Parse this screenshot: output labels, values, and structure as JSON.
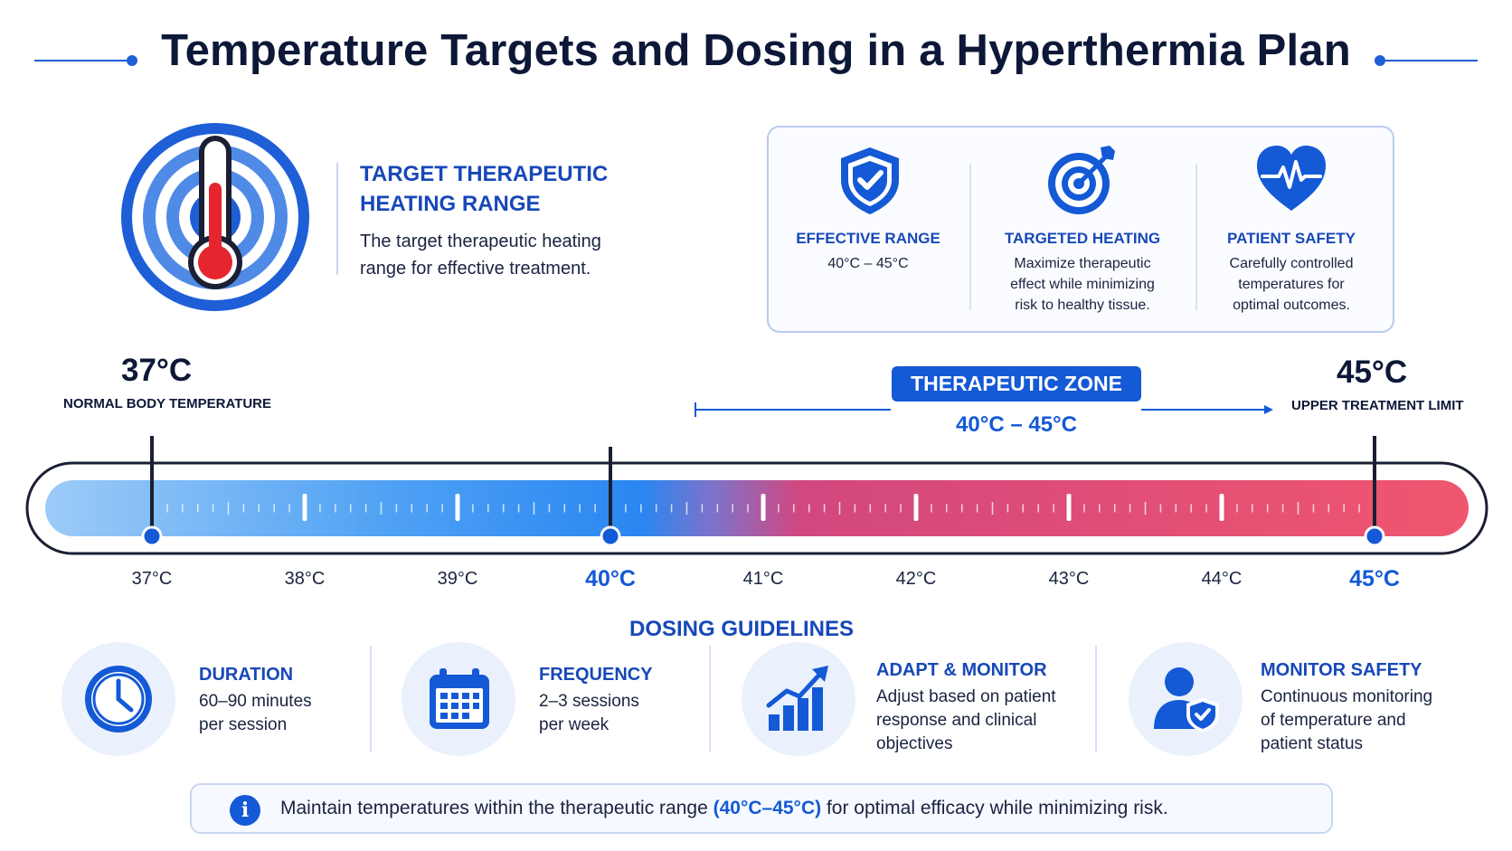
{
  "title": "Temperature Targets and Dosing in a Hyperthermia Plan",
  "target_range": {
    "heading_line1": "TARGET THERAPEUTIC",
    "heading_line2": "HEATING RANGE",
    "text_line1": "The target therapeutic heating",
    "text_line2": "range for effective treatment."
  },
  "features": [
    {
      "icon": "shield-check-icon",
      "title": "EFFECTIVE RANGE",
      "lines": [
        "40°C – 45°C"
      ]
    },
    {
      "icon": "target-arrow-icon",
      "title": "TARGETED HEATING",
      "lines": [
        "Maximize therapeutic",
        "effect while minimizing",
        "risk to healthy tissue."
      ]
    },
    {
      "icon": "heart-pulse-icon",
      "title": "PATIENT SAFETY",
      "lines": [
        "Carefully controlled",
        "temperatures for",
        "optimal outcomes."
      ]
    }
  ],
  "scale": {
    "low_value": "37°C",
    "low_caption": "NORMAL BODY TEMPERATURE",
    "high_value": "45°C",
    "high_caption": "UPPER TREATMENT LIMIT",
    "zone_label": "THERAPEUTIC ZONE",
    "zone_range": "40°C – 45°C",
    "min": 37,
    "max": 45,
    "zone_start": 40,
    "zone_end": 45,
    "ticks": [
      "37°C",
      "38°C",
      "39°C",
      "40°C",
      "41°C",
      "42°C",
      "43°C",
      "44°C",
      "45°C"
    ],
    "key_ticks": [
      "40°C",
      "45°C"
    ],
    "colors": {
      "cool": "#8cc3f7",
      "mid": "#2a86f0",
      "warm": "#e2477a",
      "hot": "#f0566e"
    }
  },
  "dosing": {
    "title": "DOSING GUIDELINES",
    "items": [
      {
        "icon": "clock-icon",
        "title": "DURATION",
        "lines": [
          "60–90 minutes",
          "per session"
        ]
      },
      {
        "icon": "calendar-icon",
        "title": "FREQUENCY",
        "lines": [
          "2–3 sessions",
          "per week"
        ]
      },
      {
        "icon": "growth-chart-icon",
        "title": "ADAPT & MONITOR",
        "lines": [
          "Adjust based on patient",
          "response and clinical",
          "objectives"
        ]
      },
      {
        "icon": "user-shield-icon",
        "title": "MONITOR SAFETY",
        "lines": [
          "Continuous monitoring",
          "of temperature and",
          "patient status"
        ]
      }
    ]
  },
  "note": {
    "icon": "info-icon",
    "before": "Maintain temperatures within the therapeutic range ",
    "highlight": "(40°C–45°C)",
    "after": " for optimal efficacy while minimizing risk."
  },
  "colors": {
    "accent": "#1459d6",
    "heading": "#1748b8",
    "text": "#0d1838"
  }
}
